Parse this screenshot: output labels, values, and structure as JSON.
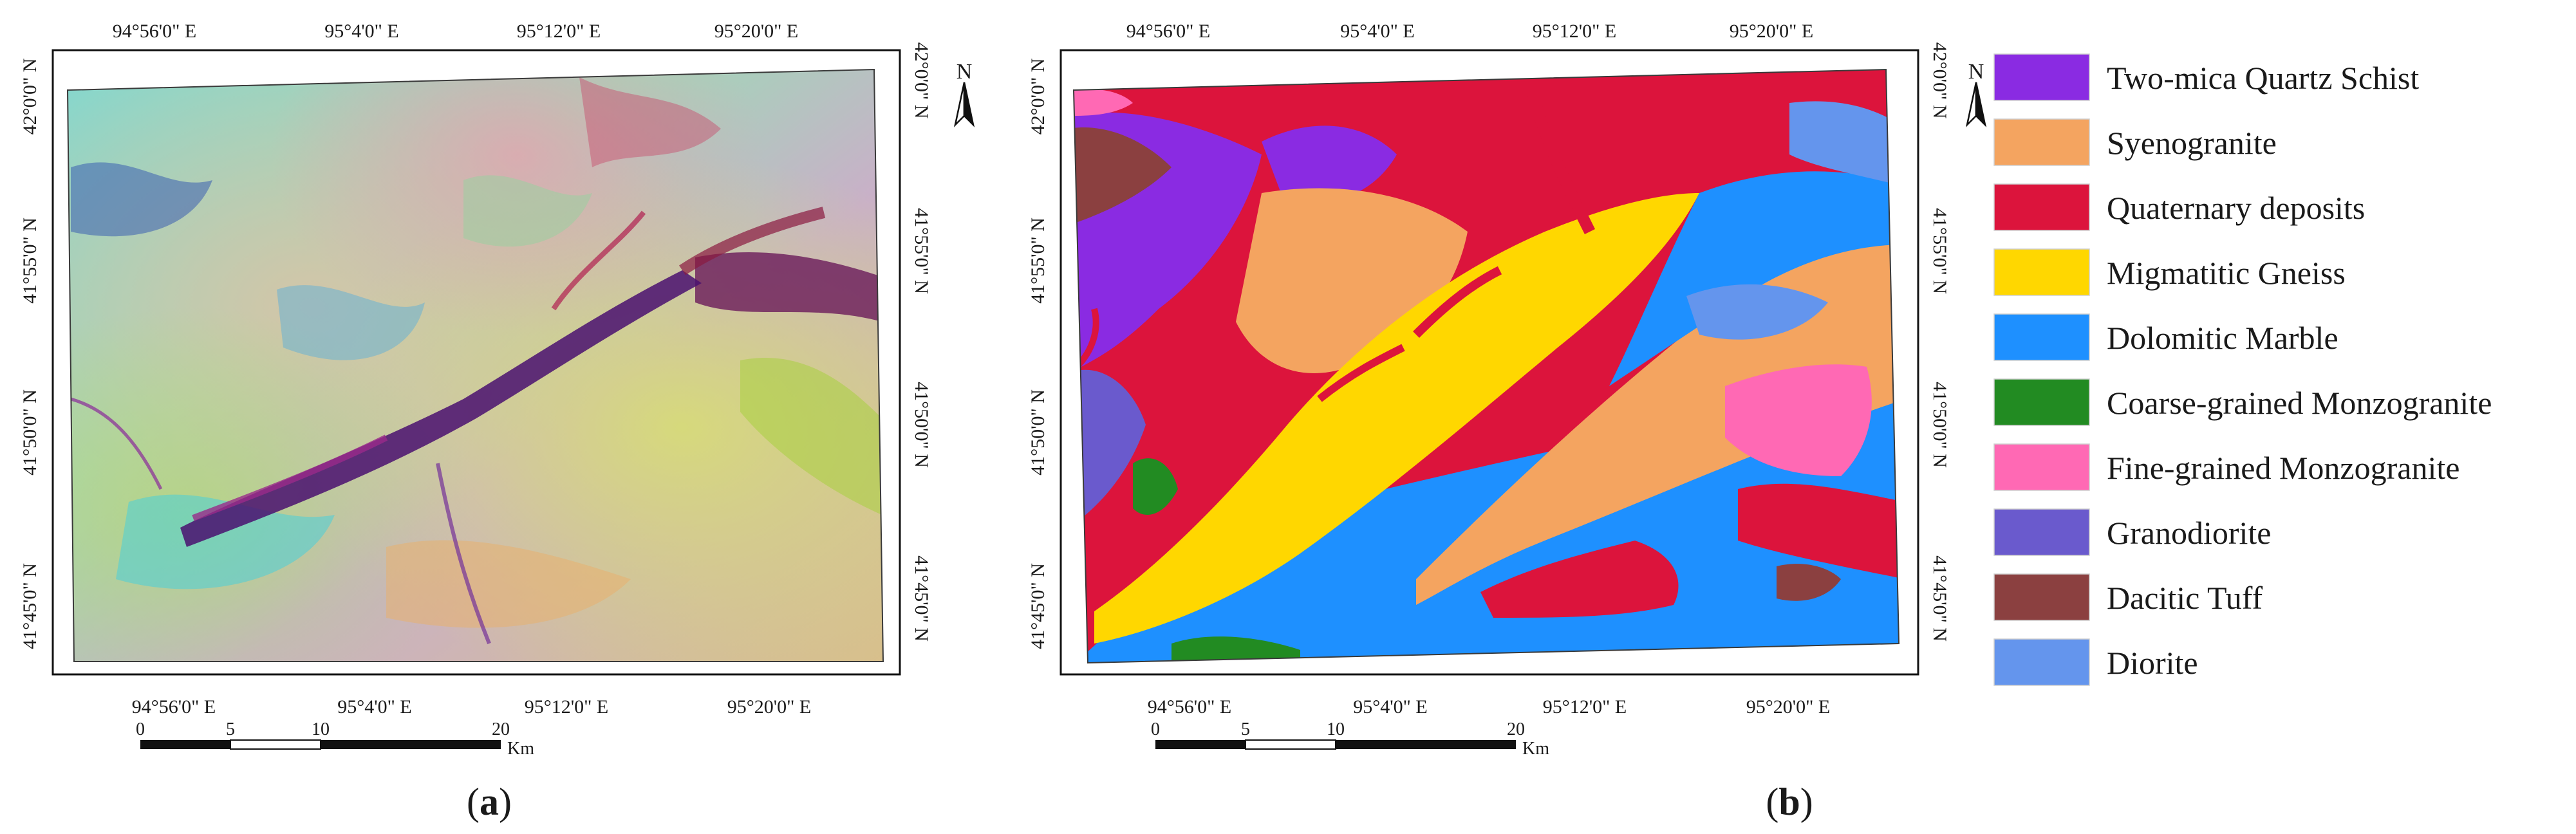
{
  "panel_a": {
    "label_open": "(",
    "label_letter": "a",
    "label_close": ")",
    "top_lon_labels": [
      "94°56'0\" E",
      "95°4'0\" E",
      "95°12'0\" E",
      "95°20'0\" E"
    ],
    "bottom_lon_labels": [
      "94°56'0\" E",
      "95°4'0\" E",
      "95°12'0\" E",
      "95°20'0\" E"
    ],
    "left_lat_labels": [
      "42°0'0\" N",
      "41°55'0\" N",
      "41°50'0\" N",
      "41°45'0\" N"
    ],
    "right_lat_labels": [
      "42°0'0\" N",
      "41°55'0\" N",
      "41°50'0\" N",
      "41°45'0\" N"
    ]
  },
  "panel_b": {
    "label_open": "(",
    "label_letter": "b",
    "label_close": ")",
    "top_lon_labels": [
      "94°56'0\" E",
      "95°4'0\" E",
      "95°12'0\" E",
      "95°20'0\" E"
    ],
    "bottom_lon_labels": [
      "94°56'0\" E",
      "95°4'0\" E",
      "95°12'0\" E",
      "95°20'0\" E"
    ],
    "left_lat_labels": [
      "42°0'0\" N",
      "41°55'0\" N",
      "41°50'0\" N",
      "41°45'0\" N"
    ],
    "right_lat_labels": [
      "42°0'0\" N",
      "41°55'0\" N",
      "41°50'0\" N",
      "41°45'0\" N"
    ]
  },
  "scale_bar": {
    "ticks": [
      "0",
      "5",
      "10",
      "20"
    ],
    "unit": "Km"
  },
  "north_arrow": {
    "label": "N",
    "icon": "north-arrow-icon"
  },
  "legend": {
    "items": [
      {
        "label": "Two-mica Quartz Schist",
        "color": "#8a2be2"
      },
      {
        "label": "Syenogranite",
        "color": "#f4a460"
      },
      {
        "label": "Quaternary deposits",
        "color": "#dc143c"
      },
      {
        "label": "Migmatitic Gneiss",
        "color": "#ffd700"
      },
      {
        "label": "Dolomitic Marble",
        "color": "#1e90ff"
      },
      {
        "label": "Coarse-grained Monzogranite",
        "color": "#228b22"
      },
      {
        "label": "Fine-grained Monzogranite",
        "color": "#ff69b4"
      },
      {
        "label": "Granodiorite",
        "color": "#6a5acd"
      },
      {
        "label": "Dacitic Tuff",
        "color": "#8b4040"
      },
      {
        "label": "Diorite",
        "color": "#6495ed"
      }
    ]
  }
}
